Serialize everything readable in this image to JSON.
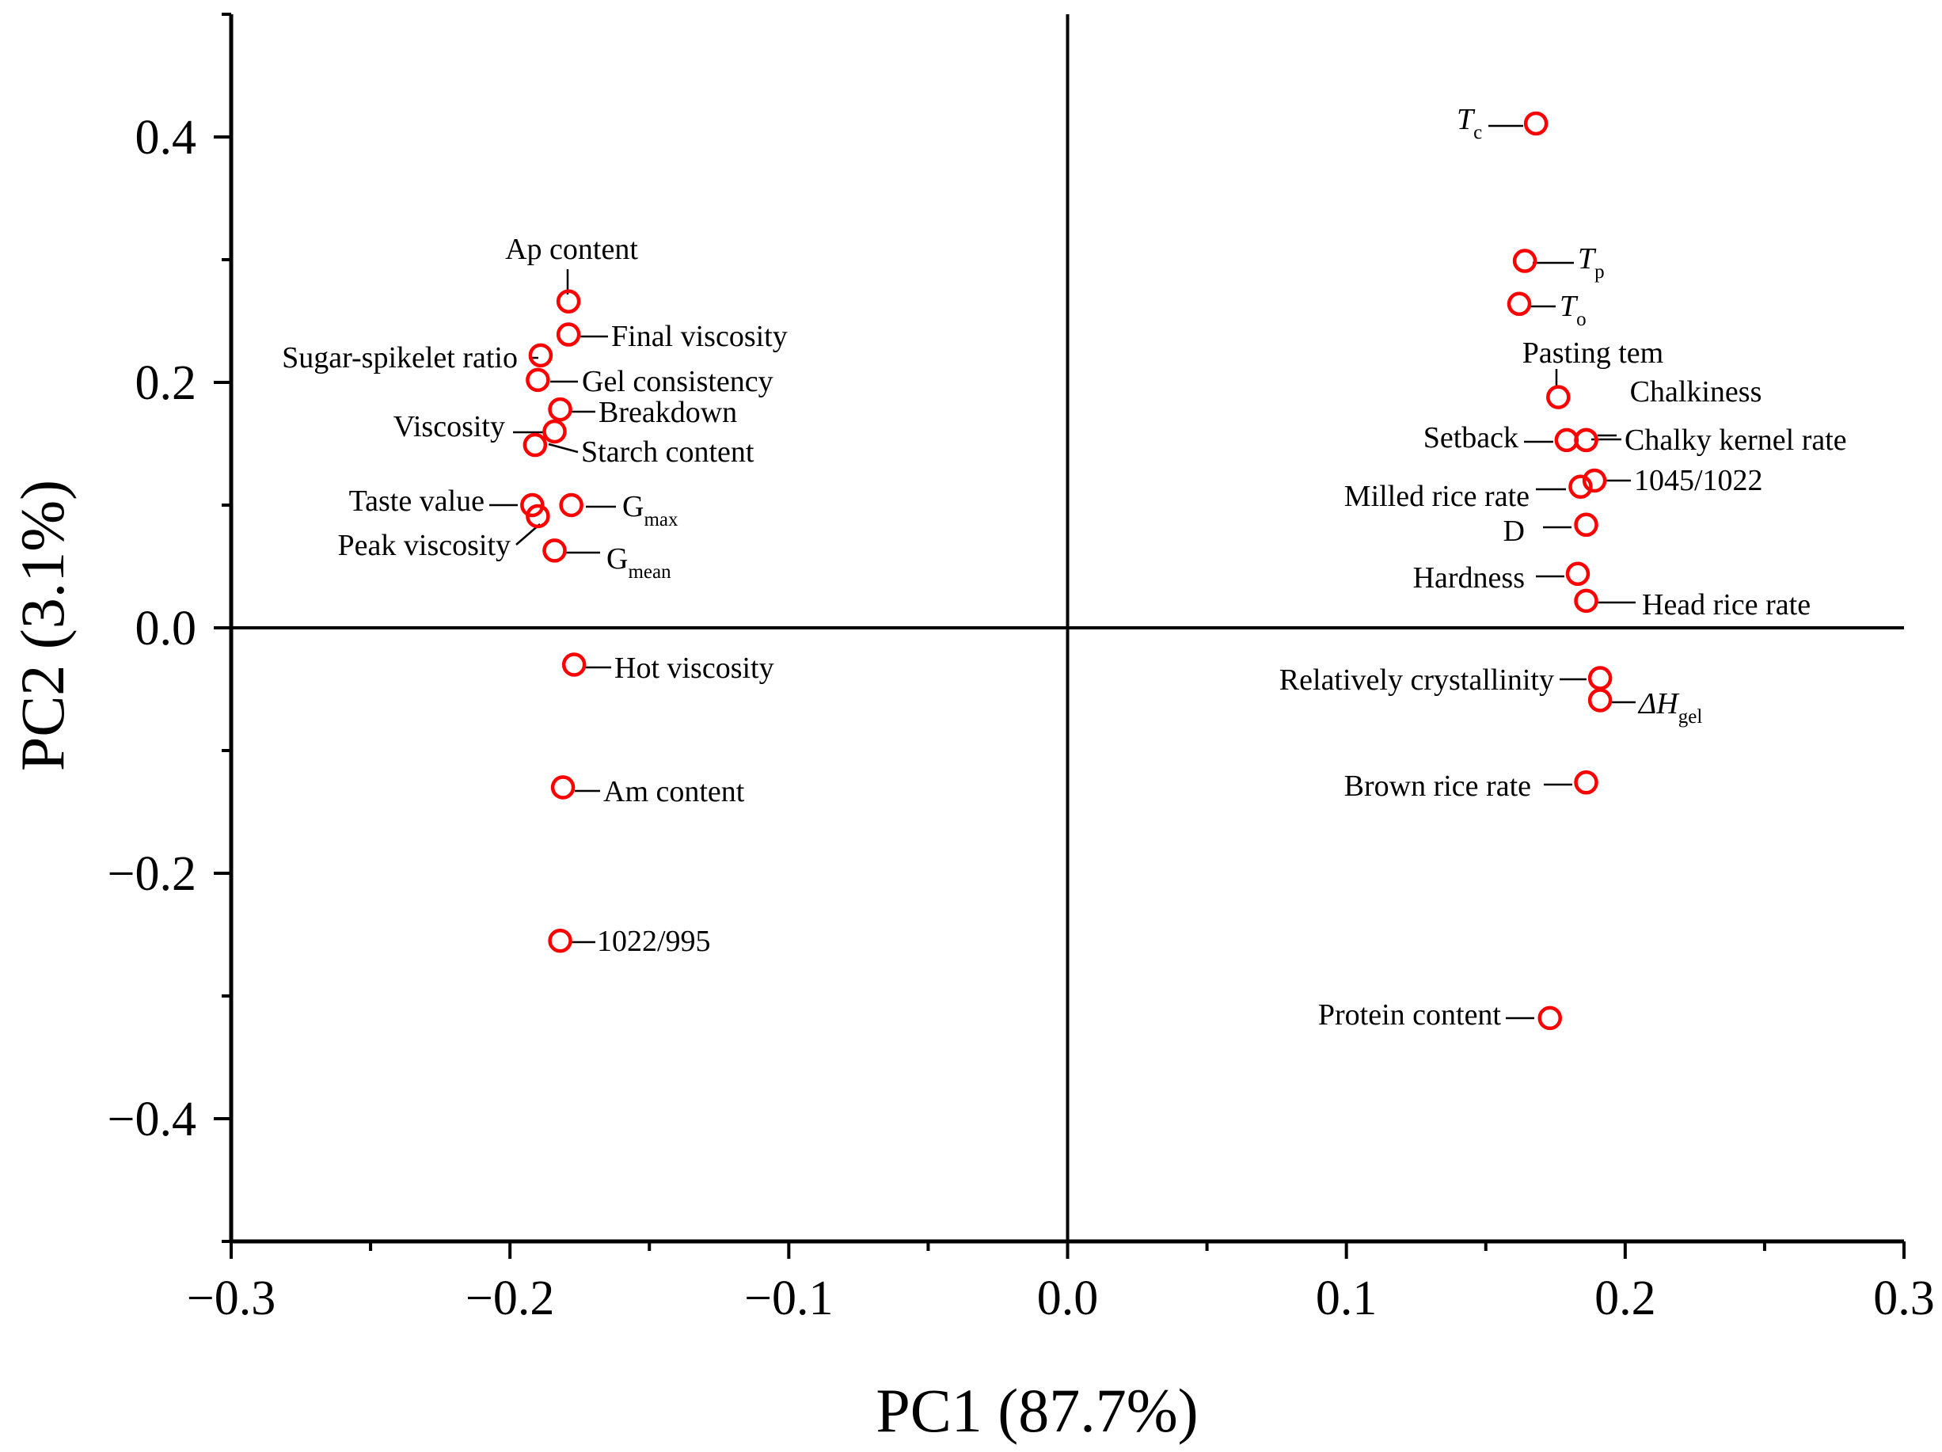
{
  "chart_data": {
    "type": "scatter",
    "xlabel": "PC1 (87.7%)",
    "ylabel": "PC2 (3.1%)",
    "xlim": [
      -0.3,
      0.3
    ],
    "ylim": [
      -0.5,
      0.5
    ],
    "x_ticks": [
      -0.3,
      -0.2,
      -0.1,
      0.0,
      0.1,
      0.2,
      0.3
    ],
    "x_tick_labels": [
      "−0.3",
      "−0.2",
      "−0.1",
      "0.0",
      "0.1",
      "0.2",
      "0.3"
    ],
    "y_ticks": [
      -0.4,
      -0.2,
      0.0,
      0.2,
      0.4
    ],
    "y_tick_labels": [
      "−0.4",
      "−0.2",
      "0.0",
      "0.2",
      "0.4"
    ],
    "marker_color": "#ff0000",
    "points": [
      {
        "name": "Ap content",
        "x": -0.179,
        "y": 0.266
      },
      {
        "name": "Final viscosity",
        "x": -0.179,
        "y": 0.239
      },
      {
        "name": "Sugar-spikelet ratio",
        "x": -0.189,
        "y": 0.222
      },
      {
        "name": "Gel consistency",
        "x": -0.19,
        "y": 0.202
      },
      {
        "name": "Breakdown",
        "x": -0.182,
        "y": 0.178
      },
      {
        "name": "Viscosity",
        "x": -0.184,
        "y": 0.16
      },
      {
        "name": "Starch content",
        "x": -0.191,
        "y": 0.149
      },
      {
        "name": "Taste value",
        "x": -0.192,
        "y": 0.1
      },
      {
        "name": "Gmax",
        "base": "G",
        "sub": "max",
        "x": -0.178,
        "y": 0.1
      },
      {
        "name": "Peak viscosity",
        "x": -0.19,
        "y": 0.091
      },
      {
        "name": "Gmean",
        "base": "G",
        "sub": "mean",
        "x": -0.184,
        "y": 0.063
      },
      {
        "name": "Hot viscosity",
        "x": -0.177,
        "y": -0.03
      },
      {
        "name": "Am content",
        "x": -0.181,
        "y": -0.13
      },
      {
        "name": "1022/995",
        "x": -0.182,
        "y": -0.255
      },
      {
        "name": "Tc",
        "base": "T",
        "sub": "c",
        "italic": true,
        "x": 0.168,
        "y": 0.411
      },
      {
        "name": "Tp",
        "base": "T",
        "sub": "p",
        "italic": true,
        "x": 0.164,
        "y": 0.299
      },
      {
        "name": "To",
        "base": "T",
        "sub": "o",
        "italic": true,
        "x": 0.162,
        "y": 0.264
      },
      {
        "name": "Pasting tem",
        "x": 0.176,
        "y": 0.188
      },
      {
        "name": "Chalkiness",
        "x": 0.186,
        "y": 0.153
      },
      {
        "name": "Setback",
        "x": 0.179,
        "y": 0.153
      },
      {
        "name": "Chalky kernel rate",
        "x": 0.186,
        "y": 0.153
      },
      {
        "name": "1045/1022",
        "x": 0.189,
        "y": 0.12
      },
      {
        "name": "Milled rice rate",
        "x": 0.184,
        "y": 0.115
      },
      {
        "name": "D",
        "x": 0.186,
        "y": 0.084
      },
      {
        "name": "Hardness",
        "x": 0.183,
        "y": 0.044
      },
      {
        "name": "Head rice rate",
        "x": 0.186,
        "y": 0.022
      },
      {
        "name": "Relatively crystallinity",
        "x": 0.191,
        "y": -0.041
      },
      {
        "name": "ΔHgel",
        "base": "ΔH",
        "sub": "gel",
        "italic": true,
        "x": 0.191,
        "y": -0.059
      },
      {
        "name": "Brown rice rate",
        "x": 0.186,
        "y": -0.126
      },
      {
        "name": "Protein content",
        "x": 0.173,
        "y": -0.318
      }
    ]
  }
}
